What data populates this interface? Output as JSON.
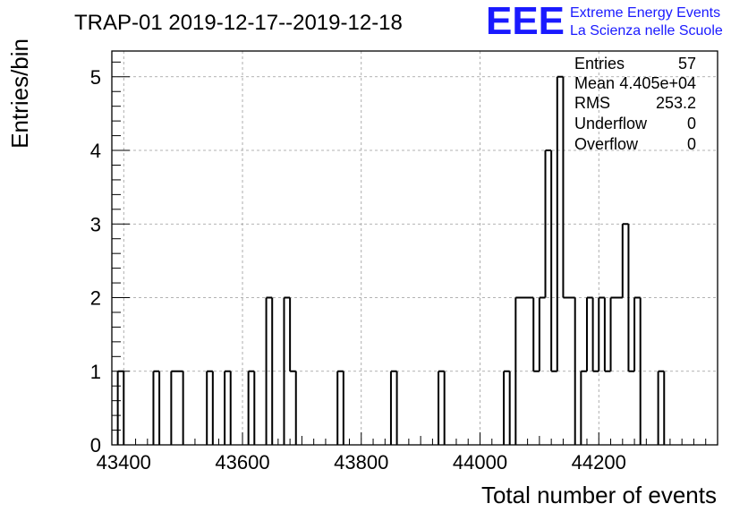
{
  "chart_data": {
    "type": "histogram",
    "title": "TRAP-01 2019-12-17--2019-12-18",
    "xlabel": "Total number of events",
    "ylabel": "Entries/bin",
    "xlim": [
      43380,
      44400
    ],
    "ylim": [
      0,
      5.35
    ],
    "bin_width": 10,
    "x_ticks": [
      43400,
      43600,
      43800,
      44000,
      44200
    ],
    "x_tick_labels": [
      "43400",
      "43600",
      "43800",
      "44000",
      "44200"
    ],
    "y_ticks": [
      0,
      1,
      2,
      3,
      4,
      5
    ],
    "y_tick_labels": [
      "0",
      "1",
      "2",
      "3",
      "4",
      "5"
    ],
    "grid": true,
    "bins": [
      {
        "low": 43390,
        "count": 1
      },
      {
        "low": 43450,
        "count": 1
      },
      {
        "low": 43480,
        "count": 1
      },
      {
        "low": 43490,
        "count": 1
      },
      {
        "low": 43540,
        "count": 1
      },
      {
        "low": 43570,
        "count": 1
      },
      {
        "low": 43610,
        "count": 1
      },
      {
        "low": 43640,
        "count": 2
      },
      {
        "low": 43670,
        "count": 2
      },
      {
        "low": 43680,
        "count": 1
      },
      {
        "low": 43760,
        "count": 1
      },
      {
        "low": 43850,
        "count": 1
      },
      {
        "low": 43930,
        "count": 1
      },
      {
        "low": 44040,
        "count": 1
      },
      {
        "low": 44060,
        "count": 2
      },
      {
        "low": 44070,
        "count": 2
      },
      {
        "low": 44080,
        "count": 2
      },
      {
        "low": 44090,
        "count": 1
      },
      {
        "low": 44100,
        "count": 2
      },
      {
        "low": 44110,
        "count": 4
      },
      {
        "low": 44120,
        "count": 1
      },
      {
        "low": 44130,
        "count": 5
      },
      {
        "low": 44140,
        "count": 2
      },
      {
        "low": 44150,
        "count": 2
      },
      {
        "low": 44170,
        "count": 1
      },
      {
        "low": 44180,
        "count": 2
      },
      {
        "low": 44190,
        "count": 1
      },
      {
        "low": 44200,
        "count": 2
      },
      {
        "low": 44210,
        "count": 1
      },
      {
        "low": 44220,
        "count": 2
      },
      {
        "low": 44230,
        "count": 2
      },
      {
        "low": 44240,
        "count": 3
      },
      {
        "low": 44250,
        "count": 1
      },
      {
        "low": 44260,
        "count": 2
      },
      {
        "low": 44300,
        "count": 1
      }
    ],
    "stats": {
      "entries": {
        "label": "Entries",
        "value": "57"
      },
      "mean": {
        "label": "Mean",
        "value": "4.405e+04"
      },
      "rms": {
        "label": "RMS",
        "value": "253.2"
      },
      "underflow": {
        "label": "Underflow",
        "value": "0"
      },
      "overflow": {
        "label": "Overflow",
        "value": "0"
      }
    }
  },
  "logo": {
    "mark": "EEE",
    "line1": "Extreme Energy Events",
    "line2": "La Scienza nelle Scuole"
  },
  "colors": {
    "line": "#000000",
    "grid": "#9a9a9a",
    "logo": "#1a1aff"
  }
}
